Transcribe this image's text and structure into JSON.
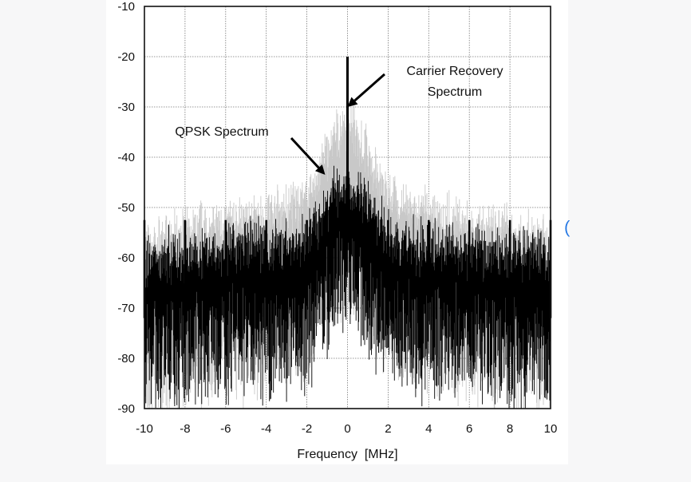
{
  "chart_data": {
    "type": "line",
    "title": "",
    "xlabel": "Frequency  [MHz]",
    "ylabel": "",
    "xlim": [
      -10,
      10
    ],
    "ylim": [
      -90,
      -10
    ],
    "grid": true,
    "x_ticks": [
      -10,
      -8,
      -6,
      -4,
      -2,
      0,
      2,
      4,
      6,
      8,
      10
    ],
    "y_ticks": [
      -10,
      -20,
      -30,
      -40,
      -50,
      -60,
      -70,
      -80,
      -90
    ],
    "x_tick_labels": [
      "-10",
      "-8",
      "-6",
      "-4",
      "-2",
      "0",
      "2",
      "4",
      "6",
      "8",
      "10"
    ],
    "y_tick_labels": [
      "-10",
      "-20",
      "-30",
      "-40",
      "-50",
      "-60",
      "-70",
      "-80",
      "-90"
    ],
    "series": [
      {
        "color": "#c8c8c8",
        "x": [
          -10,
          -9,
          -8,
          -7,
          -6,
          -5,
          -4,
          -3,
          -2,
          -1.5,
          -1,
          -0.5,
          0,
          0.5,
          1,
          1.5,
          2,
          3,
          4,
          5,
          6,
          7,
          8,
          9,
          10
        ],
        "y": [
          -63,
          -62,
          -60,
          -60,
          -59,
          -58,
          -57,
          -56,
          -54,
          -50,
          -45,
          -41,
          -39,
          -41,
          -45,
          -50,
          -54,
          -56,
          -57,
          -58,
          -59,
          -60,
          -60,
          -62,
          -63
        ]
      },
      {
        "color": "#000000",
        "x": [
          -10,
          -9,
          -8,
          -7,
          -6,
          -5,
          -4,
          -3,
          -2,
          -1.5,
          -1,
          -0.5,
          0,
          0.5,
          1,
          1.5,
          2,
          3,
          4,
          5,
          6,
          7,
          8,
          9,
          10
        ],
        "y": [
          -66,
          -65,
          -65,
          -64,
          -64,
          -63,
          -63,
          -63,
          -62,
          -58,
          -55,
          -52,
          -51,
          -52,
          -55,
          -58,
          -62,
          -63,
          -63,
          -63,
          -64,
          -64,
          -65,
          -65,
          -66
        ]
      }
    ],
    "spurs": [
      {
        "x": -10,
        "y": -52.5
      },
      {
        "x": -8,
        "y": -52.5
      },
      {
        "x": -6,
        "y": -52.5
      },
      {
        "x": -4,
        "y": -52.5
      },
      {
        "x": -2,
        "y": -52.5
      },
      {
        "x": 0,
        "y": -20
      },
      {
        "x": 2,
        "y": -52.5
      },
      {
        "x": 4,
        "y": -52.5
      },
      {
        "x": 6,
        "y": -52.5
      },
      {
        "x": 8,
        "y": -52.5
      },
      {
        "x": 10,
        "y": -52.5
      }
    ],
    "annotations": [
      {
        "lines": [
          "Carrier Recovery",
          "Spectrum"
        ],
        "target_x": 0,
        "target_y": -30
      },
      {
        "lines": [
          "QPSK Spectrum"
        ],
        "target_x": -1.1,
        "target_y": -43.5
      }
    ]
  }
}
